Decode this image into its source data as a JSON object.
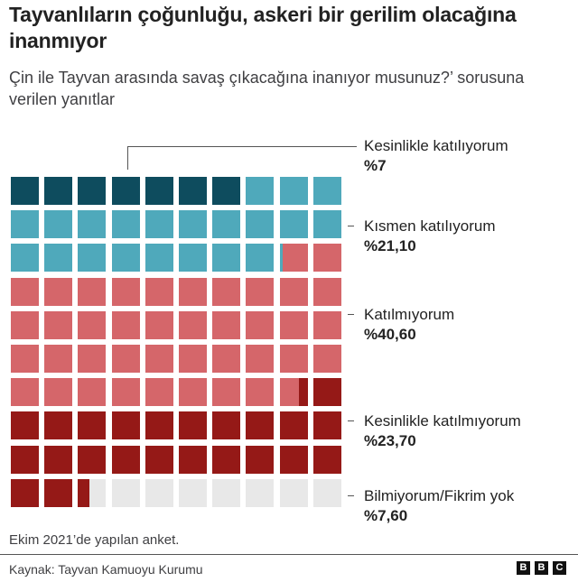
{
  "header": {
    "title": "Tayvanlıların çoğunluğu, askeri bir gerilim olacağına inanmıyor",
    "subtitle": "Çin ile Tayvan arasında savaş çıkacağına inanıyor musunuz?’ sorusuna verilen yanıtlar"
  },
  "labels": [
    {
      "name": "Kesinlikle katılıyorum",
      "pct": "%7"
    },
    {
      "name": "Kısmen katılıyorum",
      "pct": "%21,10"
    },
    {
      "name": "Katılmıyorum",
      "pct": "%40,60"
    },
    {
      "name": "Kesinlikle katılmıyorum",
      "pct": "%23,70"
    },
    {
      "name": "Bilmiyorum/Fikrim yok",
      "pct": "%7,60"
    }
  ],
  "footer": {
    "note": "Ekim 2021’de yapılan anket.",
    "source": "Kaynak: Tayvan Kamuoyu Kurumu",
    "logo": [
      "B",
      "B",
      "C"
    ]
  },
  "colors": {
    "strongly_agree": "#0e4c5e",
    "somewhat_agree": "#4fa9bb",
    "disagree": "#d5666a",
    "strongly_disagree": "#951917",
    "dont_know": "#e8e8e8"
  },
  "chart_data": {
    "type": "waffle",
    "title": "Tayvanlıların çoğunluğu, askeri bir gerilim olacağına inanmıyor",
    "subtitle": "Çin ile Tayvan arasında savaş çıkacağına inanıyor musunuz?’ sorusuna verilen yanıtlar",
    "grid": {
      "rows": 10,
      "cols": 10,
      "unit": "1% per square"
    },
    "categories": [
      "Kesinlikle katılıyorum",
      "Kısmen katılıyorum",
      "Katılmıyorum",
      "Kesinlikle katılmıyorum",
      "Bilmiyorum/Fikrim yok"
    ],
    "values": [
      7,
      21.1,
      40.6,
      23.7,
      7.6
    ],
    "colors": [
      "#0e4c5e",
      "#4fa9bb",
      "#d5666a",
      "#951917",
      "#e8e8e8"
    ],
    "unit": "%",
    "note": "Ekim 2021’de yapılan anket.",
    "source": "Kaynak: Tayvan Kamuoyu Kurumu"
  }
}
